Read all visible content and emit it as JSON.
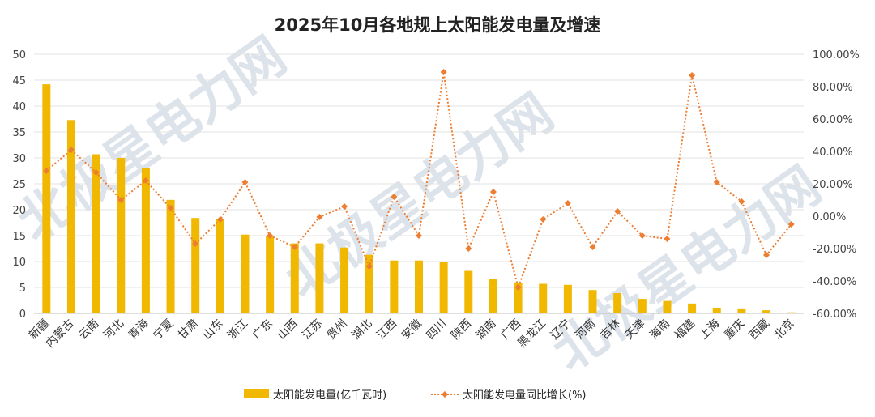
{
  "chart_data": {
    "type": "bar",
    "title": "2025年10月各地规上太阳能发电量及增速",
    "categories": [
      "新疆",
      "内蒙古",
      "云南",
      "河北",
      "青海",
      "宁夏",
      "甘肃",
      "山东",
      "浙江",
      "广东",
      "山西",
      "江苏",
      "贵州",
      "湖北",
      "江西",
      "安徽",
      "四川",
      "陕西",
      "湖南",
      "广西",
      "黑龙江",
      "辽宁",
      "河南",
      "吉林",
      "天津",
      "海南",
      "福建",
      "上海",
      "重庆",
      "西藏",
      "北京"
    ],
    "series": [
      {
        "name": "太阳能发电量(亿千瓦时)",
        "type": "bar",
        "axis": "left",
        "color": "#f0b800",
        "values": [
          44.2,
          37.3,
          30.7,
          30.0,
          28.0,
          21.9,
          18.4,
          18.2,
          15.2,
          15.0,
          13.5,
          13.5,
          12.7,
          11.3,
          10.2,
          10.2,
          9.9,
          8.2,
          6.7,
          5.9,
          5.7,
          5.5,
          4.5,
          3.9,
          2.8,
          2.4,
          1.9,
          1.1,
          0.8,
          0.6,
          0.2
        ]
      },
      {
        "name": "太阳能发电量同比增长(%)",
        "type": "line",
        "axis": "right",
        "color": "#ed7d31",
        "values": [
          28.0,
          41.0,
          27.0,
          10.0,
          22.0,
          5.0,
          -17.0,
          -2.0,
          21.0,
          -12.0,
          -19.0,
          -0.5,
          6.0,
          -31.0,
          12.0,
          -12.0,
          89.0,
          -20.0,
          15.0,
          -44.0,
          -2.0,
          8.0,
          -19.0,
          3.0,
          -12.0,
          -14.0,
          87.0,
          21.0,
          9.0,
          -24.0,
          -5.0
        ]
      }
    ],
    "y_left": {
      "min": 0,
      "max": 50,
      "ticks": [
        "0",
        "5",
        "10",
        "15",
        "20",
        "25",
        "30",
        "35",
        "40",
        "45",
        "50"
      ]
    },
    "y_right": {
      "min": -60,
      "max": 100,
      "ticks": [
        "-60.00%",
        "-40.00%",
        "-20.00%",
        "0.00%",
        "20.00%",
        "40.00%",
        "60.00%",
        "80.00%",
        "100.00%"
      ]
    },
    "grid": true,
    "legend_position": "bottom"
  },
  "watermark": [
    "北极星电力网",
    "北极星电力网",
    "北极星电力网"
  ]
}
